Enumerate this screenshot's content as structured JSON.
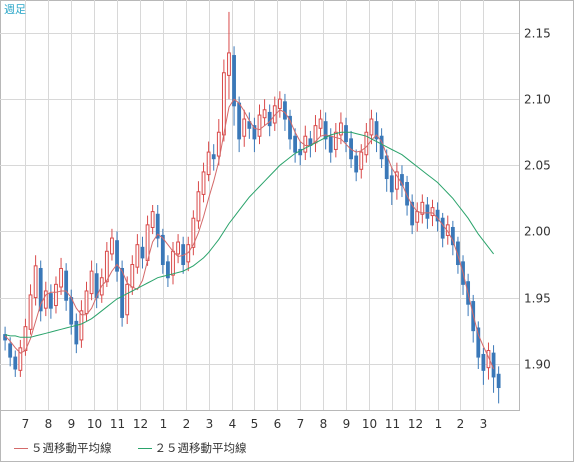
{
  "chart_data": {
    "type": "candlestick",
    "period": "週足",
    "y_ticks": [
      1.9,
      1.95,
      2.0,
      2.05,
      2.1,
      2.15
    ],
    "ylim": [
      1.865,
      2.175
    ],
    "x_ticks": [
      {
        "label": "7",
        "at": 4
      },
      {
        "label": "8",
        "at": 8.5
      },
      {
        "label": "9",
        "at": 13
      },
      {
        "label": "10",
        "at": 17.5
      },
      {
        "label": "11",
        "at": 22
      },
      {
        "label": "12",
        "at": 26.5
      },
      {
        "label": "1",
        "at": 31
      },
      {
        "label": "2",
        "at": 35.5
      },
      {
        "label": "3",
        "at": 40
      },
      {
        "label": "4",
        "at": 44.5
      },
      {
        "label": "5",
        "at": 49
      },
      {
        "label": "6",
        "at": 53.5
      },
      {
        "label": "7",
        "at": 58
      },
      {
        "label": "8",
        "at": 62.5
      },
      {
        "label": "9",
        "at": 67
      },
      {
        "label": "10",
        "at": 71.5
      },
      {
        "label": "11",
        "at": 76
      },
      {
        "label": "12",
        "at": 80.5
      },
      {
        "label": "1",
        "at": 85
      },
      {
        "label": "2",
        "at": 89.5
      },
      {
        "label": "3",
        "at": 94
      }
    ],
    "x_range": [
      -1,
      101
    ],
    "up_color": "#d94a4a",
    "down_color": "#3a78b8",
    "candles": [
      [
        1.922,
        1.918,
        1.928,
        1.91
      ],
      [
        1.915,
        1.905,
        1.92,
        1.898
      ],
      [
        1.905,
        1.896,
        1.91,
        1.89
      ],
      [
        1.895,
        1.912,
        1.918,
        1.89
      ],
      [
        1.91,
        1.928,
        1.934,
        1.906
      ],
      [
        1.926,
        1.952,
        1.96,
        1.922
      ],
      [
        1.95,
        1.974,
        1.982,
        1.944
      ],
      [
        1.972,
        1.94,
        1.978,
        1.932
      ],
      [
        1.942,
        1.955,
        1.962,
        1.936
      ],
      [
        1.953,
        1.942,
        1.96,
        1.934
      ],
      [
        1.944,
        1.96,
        1.966,
        1.938
      ],
      [
        1.958,
        1.972,
        1.98,
        1.952
      ],
      [
        1.97,
        1.948,
        1.976,
        1.94
      ],
      [
        1.95,
        1.93,
        1.956,
        1.922
      ],
      [
        1.932,
        1.915,
        1.938,
        1.908
      ],
      [
        1.918,
        1.94,
        1.948,
        1.912
      ],
      [
        1.938,
        1.955,
        1.962,
        1.932
      ],
      [
        1.953,
        1.97,
        1.978,
        1.948
      ],
      [
        1.968,
        1.95,
        1.976,
        1.942
      ],
      [
        1.952,
        1.965,
        1.972,
        1.946
      ],
      [
        1.962,
        1.985,
        1.992,
        1.958
      ],
      [
        1.983,
        1.995,
        2.002,
        1.978
      ],
      [
        1.993,
        1.97,
        2.0,
        1.962
      ],
      [
        1.972,
        1.935,
        1.978,
        1.928
      ],
      [
        1.937,
        1.96,
        1.966,
        1.93
      ],
      [
        1.958,
        1.975,
        1.982,
        1.952
      ],
      [
        1.973,
        1.99,
        1.998,
        1.968
      ],
      [
        1.988,
        1.98,
        1.996,
        1.972
      ],
      [
        1.978,
        2.005,
        2.012,
        1.974
      ],
      [
        2.003,
        2.015,
        2.02,
        1.998
      ],
      [
        2.013,
        1.995,
        2.02,
        1.988
      ],
      [
        1.997,
        1.975,
        2.002,
        1.968
      ],
      [
        1.977,
        1.965,
        1.982,
        1.958
      ],
      [
        1.967,
        1.985,
        1.992,
        1.96
      ],
      [
        1.983,
        1.992,
        1.998,
        1.976
      ],
      [
        1.99,
        1.975,
        1.996,
        1.968
      ],
      [
        1.977,
        1.99,
        1.996,
        1.97
      ],
      [
        1.988,
        2.01,
        2.016,
        1.982
      ],
      [
        2.008,
        2.03,
        2.038,
        2.002
      ],
      [
        2.028,
        2.045,
        2.052,
        2.022
      ],
      [
        2.043,
        2.06,
        2.068,
        2.038
      ],
      [
        2.058,
        2.055,
        2.066,
        2.046
      ],
      [
        2.057,
        2.075,
        2.085,
        2.05
      ],
      [
        2.073,
        2.12,
        2.13,
        2.068
      ],
      [
        2.118,
        2.135,
        2.166,
        2.1
      ],
      [
        2.133,
        2.095,
        2.14,
        2.08
      ],
      [
        2.097,
        2.07,
        2.102,
        2.06
      ],
      [
        2.072,
        2.085,
        2.092,
        2.064
      ],
      [
        2.083,
        2.078,
        2.09,
        2.07
      ],
      [
        2.08,
        2.07,
        2.086,
        2.06
      ],
      [
        2.072,
        2.088,
        2.096,
        2.066
      ],
      [
        2.086,
        2.092,
        2.1,
        2.08
      ],
      [
        2.09,
        2.08,
        2.096,
        2.072
      ],
      [
        2.082,
        2.095,
        2.102,
        2.076
      ],
      [
        2.093,
        2.1,
        2.106,
        2.086
      ],
      [
        2.098,
        2.085,
        2.104,
        2.076
      ],
      [
        2.087,
        2.07,
        2.092,
        2.062
      ],
      [
        2.072,
        2.06,
        2.078,
        2.052
      ],
      [
        2.062,
        2.058,
        2.068,
        2.05
      ],
      [
        2.06,
        2.072,
        2.08,
        2.054
      ],
      [
        2.07,
        2.065,
        2.076,
        2.056
      ],
      [
        2.067,
        2.08,
        2.088,
        2.06
      ],
      [
        2.078,
        2.085,
        2.092,
        2.072
      ],
      [
        2.083,
        2.07,
        2.09,
        2.062
      ],
      [
        2.072,
        2.06,
        2.078,
        2.052
      ],
      [
        2.062,
        2.075,
        2.082,
        2.056
      ],
      [
        2.073,
        2.082,
        2.09,
        2.066
      ],
      [
        2.08,
        2.068,
        2.086,
        2.06
      ],
      [
        2.07,
        2.055,
        2.076,
        2.048
      ],
      [
        2.057,
        2.045,
        2.062,
        2.038
      ],
      [
        2.047,
        2.06,
        2.066,
        2.04
      ],
      [
        2.058,
        2.075,
        2.082,
        2.052
      ],
      [
        2.073,
        2.085,
        2.092,
        2.066
      ],
      [
        2.083,
        2.07,
        2.09,
        2.06
      ],
      [
        2.072,
        2.055,
        2.078,
        2.048
      ],
      [
        2.057,
        2.04,
        2.062,
        2.03
      ],
      [
        2.042,
        2.03,
        2.048,
        2.02
      ],
      [
        2.032,
        2.045,
        2.052,
        2.024
      ],
      [
        2.043,
        2.035,
        2.05,
        2.026
      ],
      [
        2.037,
        2.02,
        2.042,
        2.012
      ],
      [
        2.022,
        2.005,
        2.028,
        1.998
      ],
      [
        2.007,
        2.015,
        2.022,
        2.0
      ],
      [
        2.013,
        2.022,
        2.028,
        2.006
      ],
      [
        2.02,
        2.01,
        2.026,
        2.002
      ],
      [
        2.012,
        2.018,
        2.024,
        2.004
      ],
      [
        2.016,
        2.008,
        2.022,
        2.0
      ],
      [
        2.01,
        1.995,
        2.014,
        1.988
      ],
      [
        1.997,
        2.005,
        2.012,
        1.99
      ],
      [
        2.003,
        1.99,
        2.008,
        1.982
      ],
      [
        1.992,
        1.975,
        1.996,
        1.968
      ],
      [
        1.977,
        1.96,
        1.982,
        1.952
      ],
      [
        1.962,
        1.945,
        1.968,
        1.936
      ],
      [
        1.947,
        1.925,
        1.952,
        1.916
      ],
      [
        1.927,
        1.905,
        1.932,
        1.896
      ],
      [
        1.907,
        1.895,
        1.912,
        1.884
      ],
      [
        1.897,
        1.91,
        1.916,
        1.888
      ],
      [
        1.908,
        1.89,
        1.914,
        1.878
      ],
      [
        1.892,
        1.882,
        1.898,
        1.87
      ]
    ],
    "series": [
      {
        "name": "５週移動平均線",
        "color": "#d46a6a",
        "values": [
          1.921,
          1.917,
          1.912,
          1.908,
          1.91,
          1.919,
          1.932,
          1.945,
          1.952,
          1.954,
          1.954,
          1.955,
          1.955,
          1.95,
          1.942,
          1.937,
          1.937,
          1.942,
          1.951,
          1.959,
          1.963,
          1.97,
          1.975,
          1.97,
          1.961,
          1.958,
          1.956,
          1.963,
          1.978,
          1.992,
          1.998,
          1.995,
          1.99,
          1.985,
          1.981,
          1.982,
          1.984,
          1.99,
          1.999,
          2.011,
          2.025,
          2.038,
          2.053,
          2.074,
          2.094,
          2.1,
          2.097,
          2.091,
          2.084,
          2.078,
          2.077,
          2.08,
          2.083,
          2.088,
          2.092,
          2.09,
          2.084,
          2.075,
          2.068,
          2.065,
          2.065,
          2.068,
          2.072,
          2.073,
          2.072,
          2.071,
          2.07,
          2.066,
          2.062,
          2.06,
          2.061,
          2.064,
          2.069,
          2.073,
          2.068,
          2.058,
          2.048,
          2.042,
          2.036,
          2.027,
          2.02,
          2.015,
          2.014,
          2.014,
          2.014,
          2.01,
          2.005,
          2.0,
          1.993,
          1.982,
          1.969,
          1.953,
          1.937,
          1.922,
          1.913,
          1.905,
          1.896
        ]
      },
      {
        "name": "２５週移動平均線",
        "color": "#2aa36b",
        "values": [
          1.922,
          1.921,
          1.921,
          1.92,
          1.92,
          1.92,
          1.921,
          1.922,
          1.923,
          1.924,
          1.925,
          1.926,
          1.927,
          1.928,
          1.929,
          1.93,
          1.932,
          1.934,
          1.937,
          1.94,
          1.943,
          1.946,
          1.949,
          1.951,
          1.953,
          1.955,
          1.957,
          1.959,
          1.961,
          1.963,
          1.965,
          1.966,
          1.967,
          1.968,
          1.969,
          1.97,
          1.972,
          1.974,
          1.977,
          1.98,
          1.984,
          1.989,
          1.994,
          2.0,
          2.006,
          2.011,
          2.016,
          2.021,
          2.026,
          2.03,
          2.034,
          2.038,
          2.042,
          2.046,
          2.05,
          2.053,
          2.056,
          2.059,
          2.061,
          2.063,
          2.065,
          2.067,
          2.069,
          2.071,
          2.073,
          2.074,
          2.075,
          2.075,
          2.075,
          2.074,
          2.073,
          2.072,
          2.07,
          2.068,
          2.066,
          2.064,
          2.062,
          2.06,
          2.058,
          2.055,
          2.052,
          2.049,
          2.046,
          2.043,
          2.04,
          2.037,
          2.033,
          2.029,
          2.025,
          2.02,
          2.015,
          2.01,
          2.004,
          1.998,
          1.993,
          1.988,
          1.983
        ]
      }
    ]
  }
}
